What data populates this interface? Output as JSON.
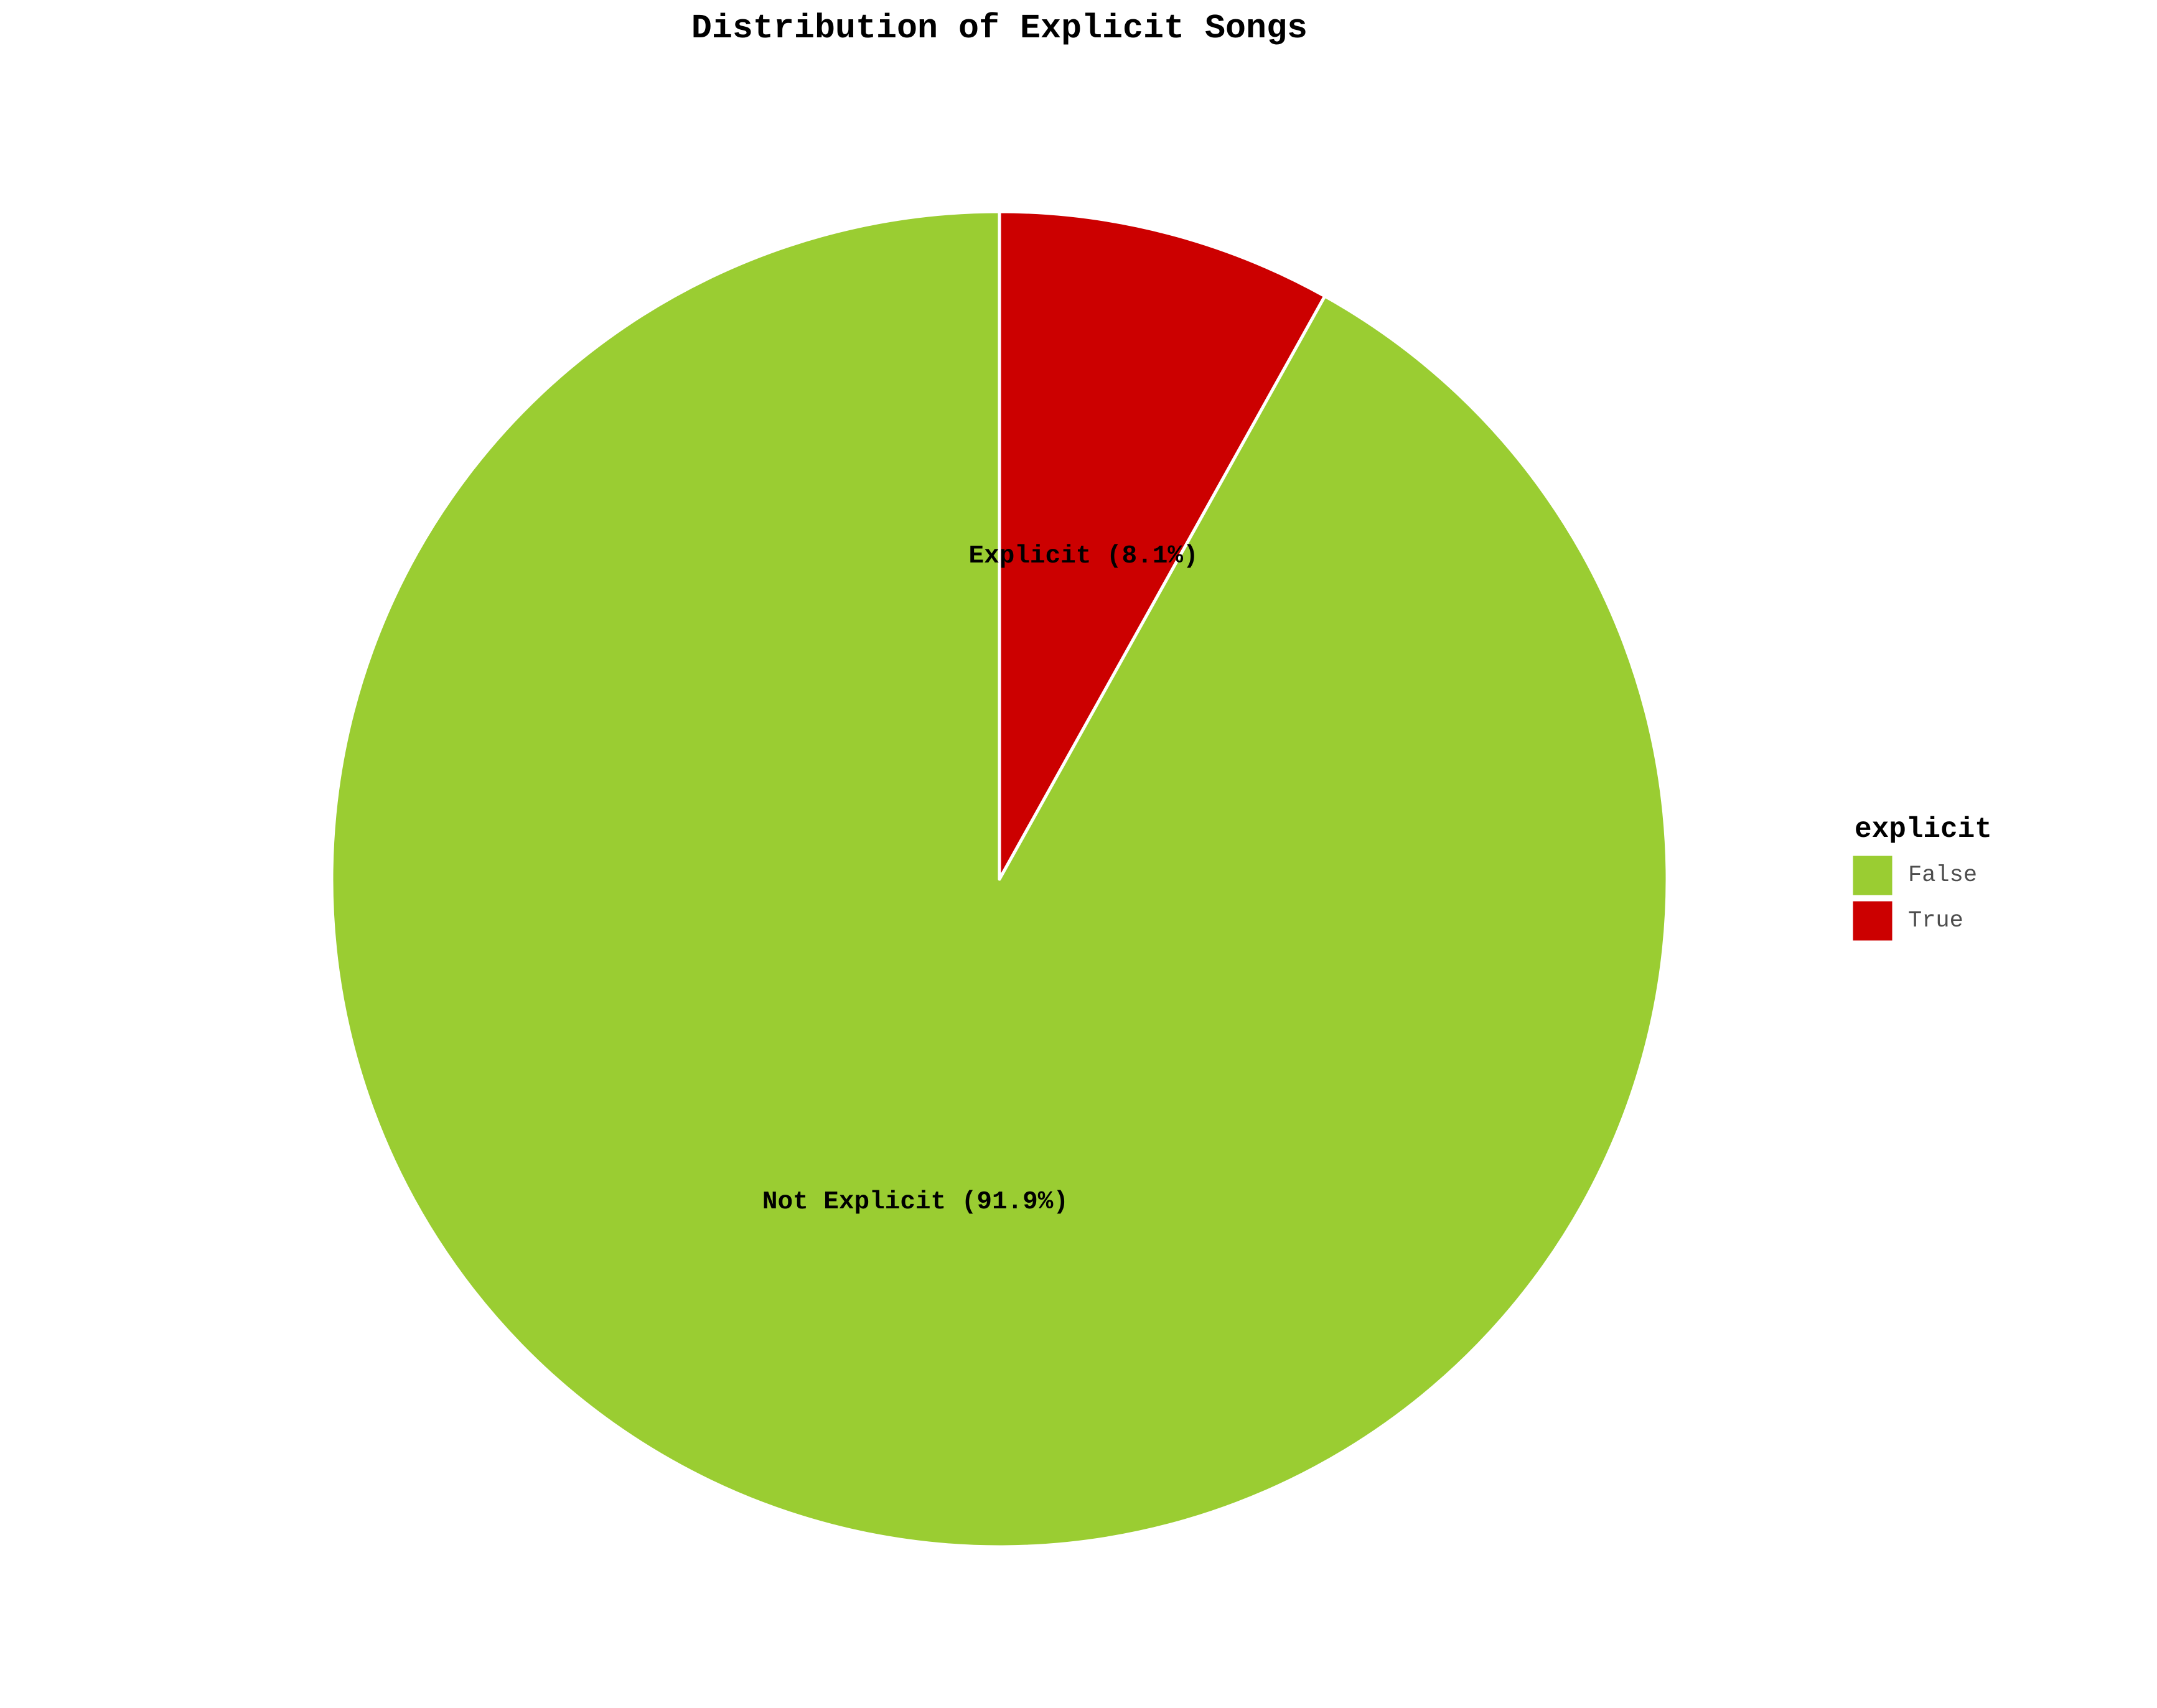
{
  "chart_data": {
    "type": "pie",
    "title": "Distribution of Explicit Songs",
    "start_angle_deg": 0,
    "direction": "clockwise",
    "slices": [
      {
        "key": "True",
        "label": "Explicit (8.1%)",
        "percent": 8.1,
        "color": "#cc0000"
      },
      {
        "key": "False",
        "label": "Not Explicit (91.9%)",
        "percent": 91.9,
        "color": "#9acd32"
      }
    ],
    "legend": {
      "title": "explicit",
      "position": "right",
      "entries": [
        {
          "label": "False",
          "color": "#9acd32"
        },
        {
          "label": "True",
          "color": "#cc0000"
        }
      ]
    }
  }
}
